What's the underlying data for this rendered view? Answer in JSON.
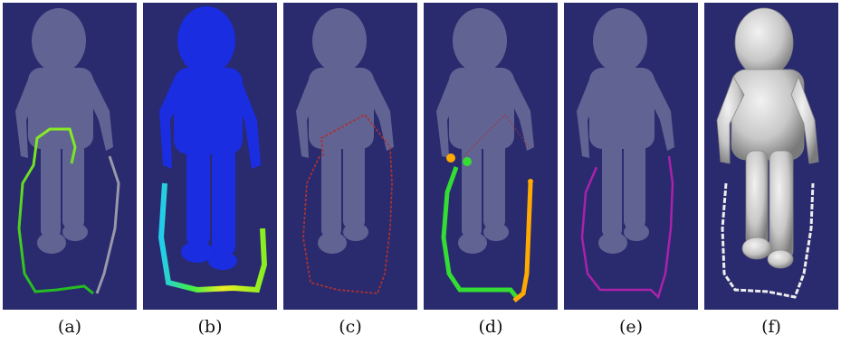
{
  "panels": [
    {
      "caption": "(a)",
      "overlay": "green-gradient-path"
    },
    {
      "caption": "(b)",
      "overlay": "heatmap-coloring"
    },
    {
      "caption": "(c)",
      "overlay": "red-dotted-path"
    },
    {
      "caption": "(d)",
      "overlay": "green-and-orange-paths"
    },
    {
      "caption": "(e)",
      "overlay": "magenta-path"
    },
    {
      "caption": "(f)",
      "overlay": "solid-gray-surface"
    }
  ],
  "colors": {
    "background": "#2a2a6e",
    "figure_translucent": "#6b6e9a",
    "green": "#33dd33",
    "orange": "#ffaa00",
    "magenta": "#aa22aa",
    "red": "#aa3333",
    "heat_blue": "#1a2de0",
    "solid_gray": "#c8c8c8"
  }
}
